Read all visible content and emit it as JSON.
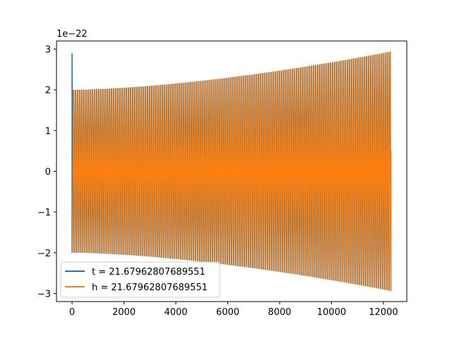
{
  "chart_data": {
    "type": "line",
    "title": "",
    "xlabel": "",
    "ylabel": "",
    "y_offset_label": "1e−22",
    "xlim": [
      -600,
      12900
    ],
    "ylim": [
      -3.2,
      3.2
    ],
    "x_ticks": [
      0,
      2000,
      4000,
      6000,
      8000,
      10000,
      12000
    ],
    "x_tick_labels": [
      "0",
      "2000",
      "4000",
      "6000",
      "8000",
      "10000",
      "12000"
    ],
    "y_ticks": [
      -3,
      -2,
      -1,
      0,
      1,
      2,
      3
    ],
    "y_tick_labels": [
      "−3",
      "−2",
      "−1",
      "0",
      "1",
      "2",
      "3"
    ],
    "grid": false,
    "legend_position": "lower left",
    "series": [
      {
        "name": "t = 21.67962807689551",
        "color": "#1f77b4",
        "x_range": [
          0,
          12290
        ],
        "envelope_start": 2.0,
        "envelope_end": 2.93,
        "initial_spike": 2.9,
        "cycles": 300
      },
      {
        "name": "h = 21.67962807689551",
        "color": "#ff7f0e",
        "x_range": [
          0,
          12290
        ],
        "envelope_start": 2.0,
        "envelope_end": 2.95,
        "cycles": 300
      }
    ]
  }
}
